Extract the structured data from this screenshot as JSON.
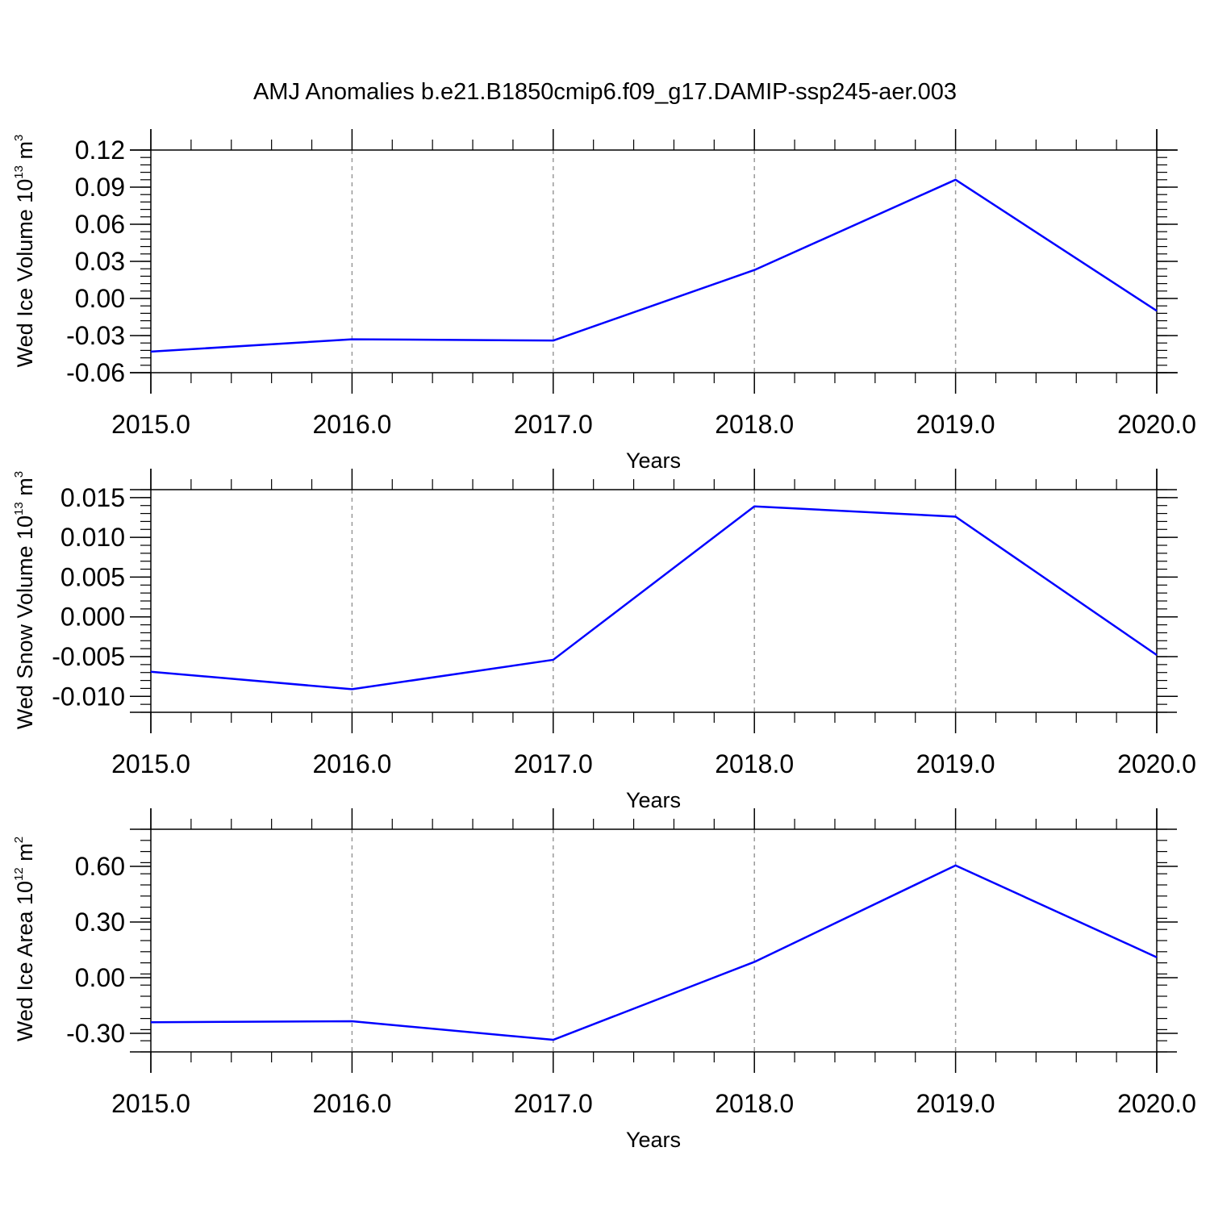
{
  "figure": {
    "title": "AMJ Anomalies b.e21.B1850cmip6.f09_g17.DAMIP-ssp245-aer.003"
  },
  "chart_data": [
    {
      "type": "line",
      "ylabel": {
        "text": "Wed Ice Volume 10",
        "exp": "13",
        "unit": " m",
        "unit_exp": "3"
      },
      "xlabel": "Years",
      "xlim": [
        2015,
        2020
      ],
      "ylim": [
        -0.06,
        0.12
      ],
      "x_ticks": [
        "2015.0",
        "2016.0",
        "2017.0",
        "2018.0",
        "2019.0",
        "2020.0"
      ],
      "y_ticks": [
        "0.12",
        "0.09",
        "0.06",
        "0.03",
        "0.00",
        "-0.03",
        "-0.06"
      ],
      "grid": "vertical-dashed",
      "line_color": "#0000ff",
      "x": [
        2015,
        2016,
        2017,
        2018,
        2019,
        2020
      ],
      "values": [
        -0.043,
        -0.033,
        -0.034,
        0.023,
        0.096,
        -0.01
      ]
    },
    {
      "type": "line",
      "ylabel": {
        "text": "Wed Snow Volume 10",
        "exp": "13",
        "unit": " m",
        "unit_exp": "3"
      },
      "xlabel": "Years",
      "xlim": [
        2015,
        2020
      ],
      "ylim": [
        -0.012,
        0.016
      ],
      "x_ticks": [
        "2015.0",
        "2016.0",
        "2017.0",
        "2018.0",
        "2019.0",
        "2020.0"
      ],
      "y_ticks": [
        "0.015",
        "0.010",
        "0.005",
        "0.000",
        "-0.005",
        "-0.010"
      ],
      "grid": "vertical-dashed",
      "line_color": "#0000ff",
      "x": [
        2015,
        2016,
        2017,
        2018,
        2019,
        2020
      ],
      "values": [
        -0.0069,
        -0.0091,
        -0.0054,
        0.0139,
        0.0126,
        -0.0048
      ]
    },
    {
      "type": "line",
      "ylabel": {
        "text": "Wed Ice Area 10",
        "exp": "12",
        "unit": " m",
        "unit_exp": "2"
      },
      "xlabel": "Years",
      "xlim": [
        2015,
        2020
      ],
      "ylim": [
        -0.4,
        0.8
      ],
      "x_ticks": [
        "2015.0",
        "2016.0",
        "2017.0",
        "2018.0",
        "2019.0",
        "2020.0"
      ],
      "y_ticks": [
        "0.60",
        "0.30",
        "0.00",
        "-0.30"
      ],
      "grid": "vertical-dashed",
      "line_color": "#0000ff",
      "x": [
        2015,
        2016,
        2017,
        2018,
        2019,
        2020
      ],
      "values": [
        -0.24,
        -0.235,
        -0.335,
        0.085,
        0.605,
        0.11
      ]
    }
  ]
}
